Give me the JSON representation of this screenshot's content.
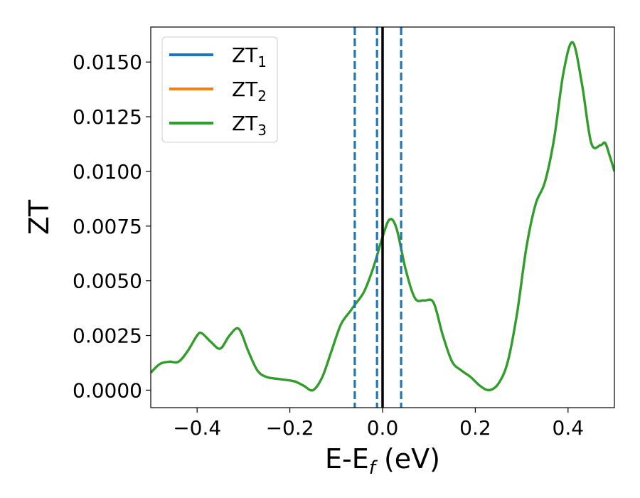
{
  "chart_data": {
    "type": "line",
    "xlabel": "E-E",
    "xlabel_sub": "f",
    "xlabel_unit": " (eV)",
    "ylabel": "ZT",
    "xlim": [
      -0.5,
      0.5
    ],
    "ylim": [
      -0.0008,
      0.0166
    ],
    "x_ticks": [
      -0.4,
      -0.2,
      0.0,
      0.2,
      0.4
    ],
    "x_tick_labels": [
      "−0.4",
      "−0.2",
      "0.0",
      "0.2",
      "0.4"
    ],
    "y_ticks": [
      0.0,
      0.0025,
      0.005,
      0.0075,
      0.01,
      0.0125,
      0.015
    ],
    "y_tick_labels": [
      "0.0000",
      "0.0025",
      "0.0050",
      "0.0075",
      "0.0100",
      "0.0125",
      "0.0150"
    ],
    "grid": false,
    "legend_position": "top-left",
    "vlines": [
      {
        "x": -0.06,
        "style": "dashed",
        "color": "#1f77b4"
      },
      {
        "x": -0.012,
        "style": "dashed",
        "color": "#1f77b4"
      },
      {
        "x": 0.0,
        "style": "solid",
        "color": "#000000"
      },
      {
        "x": 0.04,
        "style": "dashed",
        "color": "#1f77b4"
      }
    ],
    "series": [
      {
        "name": "ZT",
        "sub": "1",
        "color": "#1f77b4"
      },
      {
        "name": "ZT",
        "sub": "2",
        "color": "#ff7f0e"
      },
      {
        "name": "ZT",
        "sub": "3",
        "color": "#2ca02c"
      }
    ],
    "x": [
      -0.5,
      -0.48,
      -0.46,
      -0.44,
      -0.42,
      -0.4,
      -0.39,
      -0.37,
      -0.35,
      -0.33,
      -0.31,
      -0.29,
      -0.27,
      -0.25,
      -0.22,
      -0.19,
      -0.17,
      -0.15,
      -0.13,
      -0.11,
      -0.09,
      -0.07,
      -0.06,
      -0.04,
      -0.02,
      0.0,
      0.015,
      0.03,
      0.05,
      0.07,
      0.09,
      0.11,
      0.13,
      0.15,
      0.17,
      0.19,
      0.21,
      0.23,
      0.25,
      0.27,
      0.29,
      0.31,
      0.33,
      0.35,
      0.37,
      0.39,
      0.41,
      0.43,
      0.45,
      0.47,
      0.48,
      0.49,
      0.5
    ],
    "y": [
      0.0008,
      0.0012,
      0.0013,
      0.0013,
      0.0018,
      0.0025,
      0.0026,
      0.0022,
      0.0019,
      0.0025,
      0.0028,
      0.0018,
      0.0009,
      0.0006,
      0.0005,
      0.0004,
      0.0002,
      0.0,
      0.0006,
      0.0018,
      0.003,
      0.0036,
      0.0039,
      0.0045,
      0.0056,
      0.007,
      0.0078,
      0.0074,
      0.0055,
      0.0042,
      0.0041,
      0.004,
      0.0025,
      0.0013,
      0.0009,
      0.0006,
      0.0002,
      0.0,
      0.0003,
      0.0013,
      0.0035,
      0.0065,
      0.0085,
      0.0095,
      0.0115,
      0.0145,
      0.0159,
      0.014,
      0.0113,
      0.0112,
      0.0113,
      0.0107,
      0.01
    ]
  }
}
